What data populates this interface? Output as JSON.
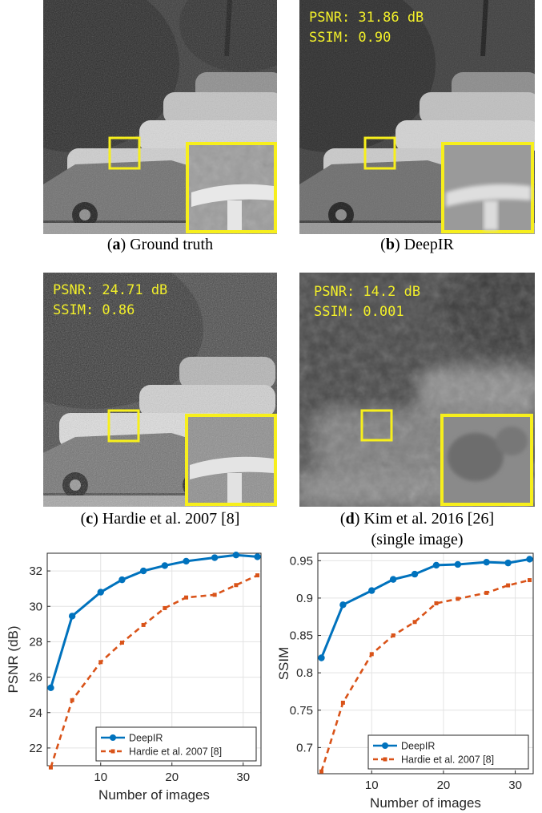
{
  "panels": [
    {
      "id": "a",
      "letter": "a",
      "caption": "Ground truth",
      "psnr": null,
      "ssim": null
    },
    {
      "id": "b",
      "letter": "b",
      "caption": "DeepIR",
      "psnr": "PSNR: 31.86 dB",
      "ssim": "SSIM: 0.90"
    },
    {
      "id": "c",
      "letter": "c",
      "caption": "Hardie et al. 2007 [8]",
      "psnr": "PSNR: 24.71 dB",
      "ssim": "SSIM: 0.86"
    },
    {
      "id": "d",
      "letter": "d",
      "caption": "Kim et al. 2016 [26]",
      "caption2": "(single image)",
      "psnr": "PSNR: 14.2 dB",
      "ssim": "SSIM: 0.001"
    }
  ],
  "colors": {
    "deepir": "#0072bd",
    "hardie": "#d95319",
    "highlight": "#f7ef1c"
  },
  "chart_data": [
    {
      "type": "line",
      "xlabel": "Number of images",
      "ylabel": "PSNR (dB)",
      "xlim": [
        2.5,
        32.5
      ],
      "ylim": [
        21,
        33
      ],
      "xticks": [
        10,
        20,
        30
      ],
      "yticks": [
        22,
        24,
        26,
        28,
        30,
        32
      ],
      "ytick_labels": [
        "22",
        "24",
        "26",
        "28",
        "30",
        "32"
      ],
      "legend": "bottom-right",
      "series": [
        {
          "name": "DeepIR",
          "style": "solid",
          "x": [
            3,
            6,
            10,
            13,
            16,
            19,
            22,
            26,
            29,
            32
          ],
          "y": [
            25.4,
            29.45,
            30.8,
            31.5,
            32.0,
            32.3,
            32.55,
            32.75,
            32.9,
            32.8
          ]
        },
        {
          "name": "Hardie et al. 2007 [8]",
          "style": "dashed",
          "x": [
            3,
            6,
            10,
            13,
            16,
            19,
            22,
            26,
            29,
            32
          ],
          "y": [
            20.9,
            24.7,
            26.85,
            27.95,
            28.95,
            29.9,
            30.5,
            30.65,
            31.2,
            31.75
          ]
        }
      ]
    },
    {
      "type": "line",
      "xlabel": "Number of images",
      "ylabel": "SSIM",
      "xlim": [
        2.5,
        32.5
      ],
      "ylim": [
        0.665,
        0.96
      ],
      "xticks": [
        10,
        20,
        30
      ],
      "yticks": [
        0.7,
        0.75,
        0.8,
        0.85,
        0.9,
        0.95
      ],
      "ytick_labels": [
        "0.7",
        "0.75",
        "0.8",
        "0.85",
        "0.9",
        "0.95"
      ],
      "legend": "bottom-right",
      "series": [
        {
          "name": "DeepIR",
          "style": "solid",
          "x": [
            3,
            6,
            10,
            13,
            16,
            19,
            22,
            26,
            29,
            32
          ],
          "y": [
            0.82,
            0.891,
            0.91,
            0.925,
            0.932,
            0.944,
            0.945,
            0.948,
            0.947,
            0.952
          ]
        },
        {
          "name": "Hardie et al. 2007 [8]",
          "style": "dashed",
          "x": [
            3,
            6,
            10,
            13,
            16,
            19,
            22,
            26,
            29,
            32
          ],
          "y": [
            0.668,
            0.76,
            0.825,
            0.85,
            0.868,
            0.893,
            0.899,
            0.907,
            0.917,
            0.924
          ]
        }
      ]
    }
  ]
}
